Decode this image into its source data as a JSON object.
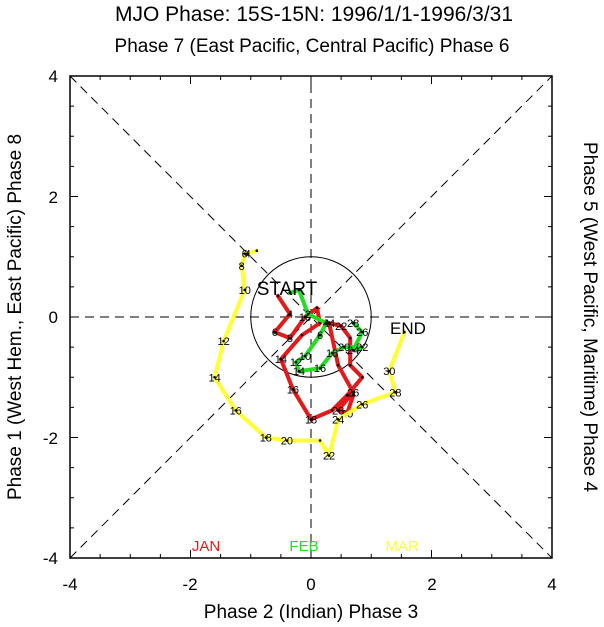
{
  "chart_data": {
    "type": "line",
    "title": "MJO Phase: 15S-15N: 1996/1/1-1996/3/31",
    "top_label": "Phase 7 (East Pacific, Central Pacific) Phase 6",
    "xlabel": "Phase 2 (Indian) Phase 3",
    "ylabel_left": "Phase 1 (West Hem., East Pacific) Phase 8",
    "ylabel_right": "Phase 5 (West Pacific, Maritime) Phase 4",
    "xlim": [
      -4,
      4
    ],
    "ylim": [
      -4,
      4
    ],
    "xticks": [
      "-4",
      "-2",
      "0",
      "2",
      "4"
    ],
    "yticks": [
      "4",
      "2",
      "0",
      "-2",
      "-4"
    ],
    "grid": false,
    "unit_circle_radius": 1,
    "start_label": "START",
    "end_label": "END",
    "legend": [
      {
        "name": "JAN",
        "color": "#e31a1c"
      },
      {
        "name": "FEB",
        "color": "#22dd22"
      },
      {
        "name": "MAR",
        "color": "#ffff33"
      }
    ],
    "series": [
      {
        "name": "JAN",
        "color": "#e31a1c",
        "points": [
          {
            "x": -0.55,
            "y": 0.35,
            "label": ""
          },
          {
            "x": -0.35,
            "y": 0.05,
            "label": "4"
          },
          {
            "x": -0.6,
            "y": -0.25,
            "label": "6"
          },
          {
            "x": -0.35,
            "y": -0.35,
            "label": "8"
          },
          {
            "x": -0.1,
            "y": 0.0,
            "label": "10"
          },
          {
            "x": 0.1,
            "y": 0.15,
            "label": ""
          },
          {
            "x": 0.15,
            "y": -0.1,
            "label": ""
          },
          {
            "x": -0.15,
            "y": -0.3,
            "label": ""
          },
          {
            "x": -0.5,
            "y": -0.7,
            "label": "14"
          },
          {
            "x": -0.3,
            "y": -1.2,
            "label": "16"
          },
          {
            "x": 0.0,
            "y": -1.7,
            "label": "18"
          },
          {
            "x": 0.35,
            "y": -1.55,
            "label": ""
          },
          {
            "x": 0.6,
            "y": -1.3,
            "label": ""
          },
          {
            "x": 0.85,
            "y": -1.0,
            "label": ""
          },
          {
            "x": 0.65,
            "y": -0.8,
            "label": ""
          },
          {
            "x": 0.65,
            "y": -0.35,
            "label": ""
          },
          {
            "x": 0.5,
            "y": -0.15,
            "label": "22"
          },
          {
            "x": 0.3,
            "y": -0.1,
            "label": "24"
          },
          {
            "x": 0.45,
            "y": -0.8,
            "label": ""
          },
          {
            "x": 0.7,
            "y": -1.25,
            "label": "26"
          },
          {
            "x": 0.45,
            "y": -1.55,
            "label": "28"
          },
          {
            "x": 0.6,
            "y": -1.6,
            "label": "30"
          },
          {
            "x": 0.7,
            "y": -1.3,
            "label": ""
          }
        ]
      },
      {
        "name": "FEB",
        "color": "#22dd22",
        "points": [
          {
            "x": -0.35,
            "y": 0.4,
            "label": ""
          },
          {
            "x": -0.2,
            "y": 0.45,
            "label": ""
          },
          {
            "x": -0.05,
            "y": 0.05,
            "label": "2"
          },
          {
            "x": 0.25,
            "y": -0.1,
            "label": "4"
          },
          {
            "x": 0.15,
            "y": -0.3,
            "label": "6"
          },
          {
            "x": -0.1,
            "y": -0.65,
            "label": "10"
          },
          {
            "x": -0.25,
            "y": -0.75,
            "label": "12"
          },
          {
            "x": -0.2,
            "y": -0.9,
            "label": "14"
          },
          {
            "x": 0.15,
            "y": -0.85,
            "label": "16"
          },
          {
            "x": 0.35,
            "y": -0.6,
            "label": "18"
          },
          {
            "x": 0.55,
            "y": -0.5,
            "label": "20"
          },
          {
            "x": 0.85,
            "y": -0.5,
            "label": "22"
          },
          {
            "x": 0.7,
            "y": -0.55,
            "label": "24"
          },
          {
            "x": 0.85,
            "y": -0.25,
            "label": "26"
          },
          {
            "x": 0.7,
            "y": -0.1,
            "label": "28"
          }
        ]
      },
      {
        "name": "MAR",
        "color": "#ffff33",
        "points": [
          {
            "x": -0.9,
            "y": 1.1,
            "label": ""
          },
          {
            "x": -1.05,
            "y": 1.05,
            "label": "4"
          },
          {
            "x": -1.1,
            "y": 1.05,
            "label": "6"
          },
          {
            "x": -1.15,
            "y": 0.85,
            "label": "8"
          },
          {
            "x": -1.1,
            "y": 0.45,
            "label": "10"
          },
          {
            "x": -1.45,
            "y": -0.4,
            "label": "12"
          },
          {
            "x": -1.6,
            "y": -1.0,
            "label": "14"
          },
          {
            "x": -1.25,
            "y": -1.55,
            "label": "16"
          },
          {
            "x": -0.75,
            "y": -2.0,
            "label": "18"
          },
          {
            "x": -0.4,
            "y": -2.05,
            "label": "20"
          },
          {
            "x": 0.15,
            "y": -2.05,
            "label": ""
          },
          {
            "x": 0.3,
            "y": -2.3,
            "label": "22"
          },
          {
            "x": 0.45,
            "y": -1.7,
            "label": "24"
          },
          {
            "x": 0.85,
            "y": -1.45,
            "label": "26"
          },
          {
            "x": 1.4,
            "y": -1.25,
            "label": "28"
          },
          {
            "x": 1.3,
            "y": -0.9,
            "label": "30"
          },
          {
            "x": 1.55,
            "y": -0.25,
            "label": ""
          }
        ]
      }
    ]
  }
}
